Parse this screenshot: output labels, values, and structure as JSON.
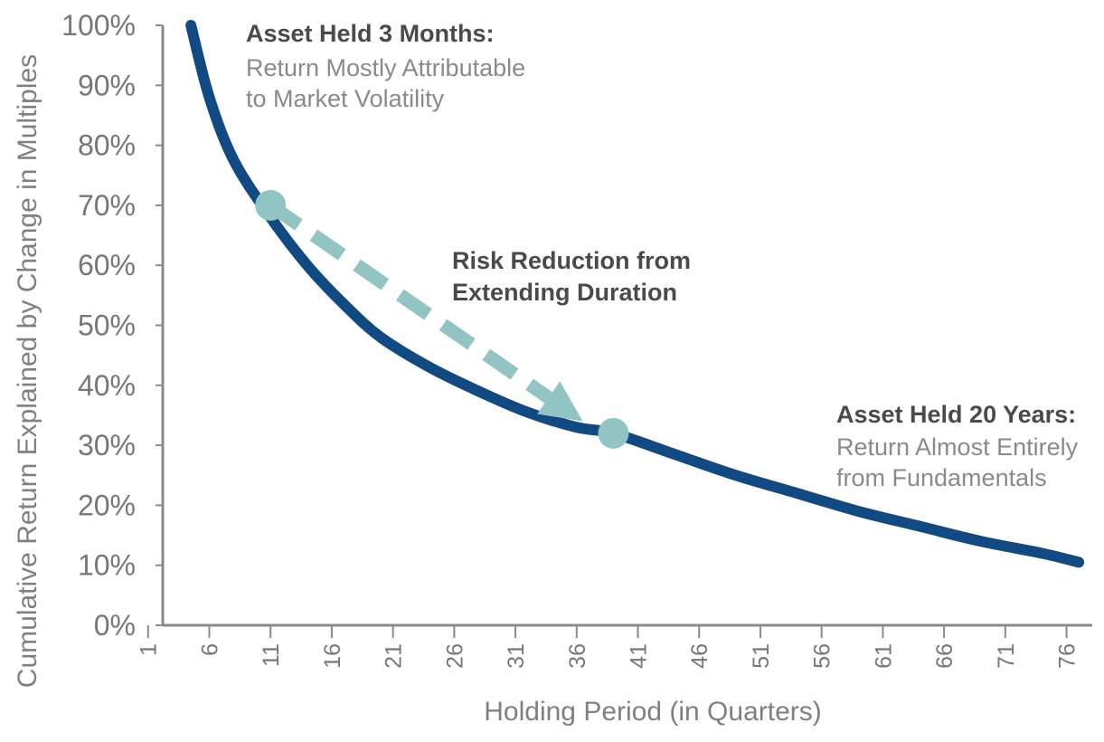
{
  "chart_data": {
    "type": "line",
    "xlabel": "Holding Period (in Quarters)",
    "ylabel": "Cumulative Return Explained by Change in Multiples",
    "xlim": [
      1,
      77
    ],
    "ylim": [
      0,
      1
    ],
    "x_ticks": [
      "1",
      "6",
      "11",
      "16",
      "21",
      "26",
      "31",
      "36",
      "41",
      "46",
      "51",
      "56",
      "61",
      "66",
      "71",
      "76"
    ],
    "y_ticks": [
      "0%",
      "10%",
      "20%",
      "30%",
      "40%",
      "50%",
      "60%",
      "70%",
      "80%",
      "90%",
      "100%"
    ],
    "grid": false,
    "series": [
      {
        "color": "#114a82",
        "x": [
          4.5,
          6,
          8,
          11,
          14,
          17,
          20,
          24,
          28,
          32,
          36,
          39,
          44,
          49,
          54,
          59,
          64,
          69,
          74,
          77
        ],
        "y": [
          1.0,
          0.88,
          0.775,
          0.68,
          0.6,
          0.535,
          0.48,
          0.43,
          0.39,
          0.355,
          0.33,
          0.32,
          0.285,
          0.25,
          0.22,
          0.19,
          0.165,
          0.14,
          0.12,
          0.105
        ]
      }
    ],
    "markers": [
      {
        "x": 11,
        "y": 0.7,
        "color": "#93c4c4"
      },
      {
        "x": 39,
        "y": 0.32,
        "color": "#93c4c4"
      }
    ],
    "arrow": {
      "from": [
        11,
        0.7
      ],
      "to": [
        36.5,
        0.34
      ],
      "color": "#93c4c4",
      "style": "dashed"
    },
    "annotations": [
      {
        "title": "Asset Held 3 Months:",
        "lines": [
          "Return Mostly Attributable",
          "to Market Volatility"
        ]
      },
      {
        "title": "Risk Reduction from",
        "lines": [
          "Extending Duration"
        ]
      },
      {
        "title": "Asset Held 20 Years:",
        "lines": [
          "Return  Almost Entirely",
          "from Fundamentals"
        ]
      }
    ]
  }
}
